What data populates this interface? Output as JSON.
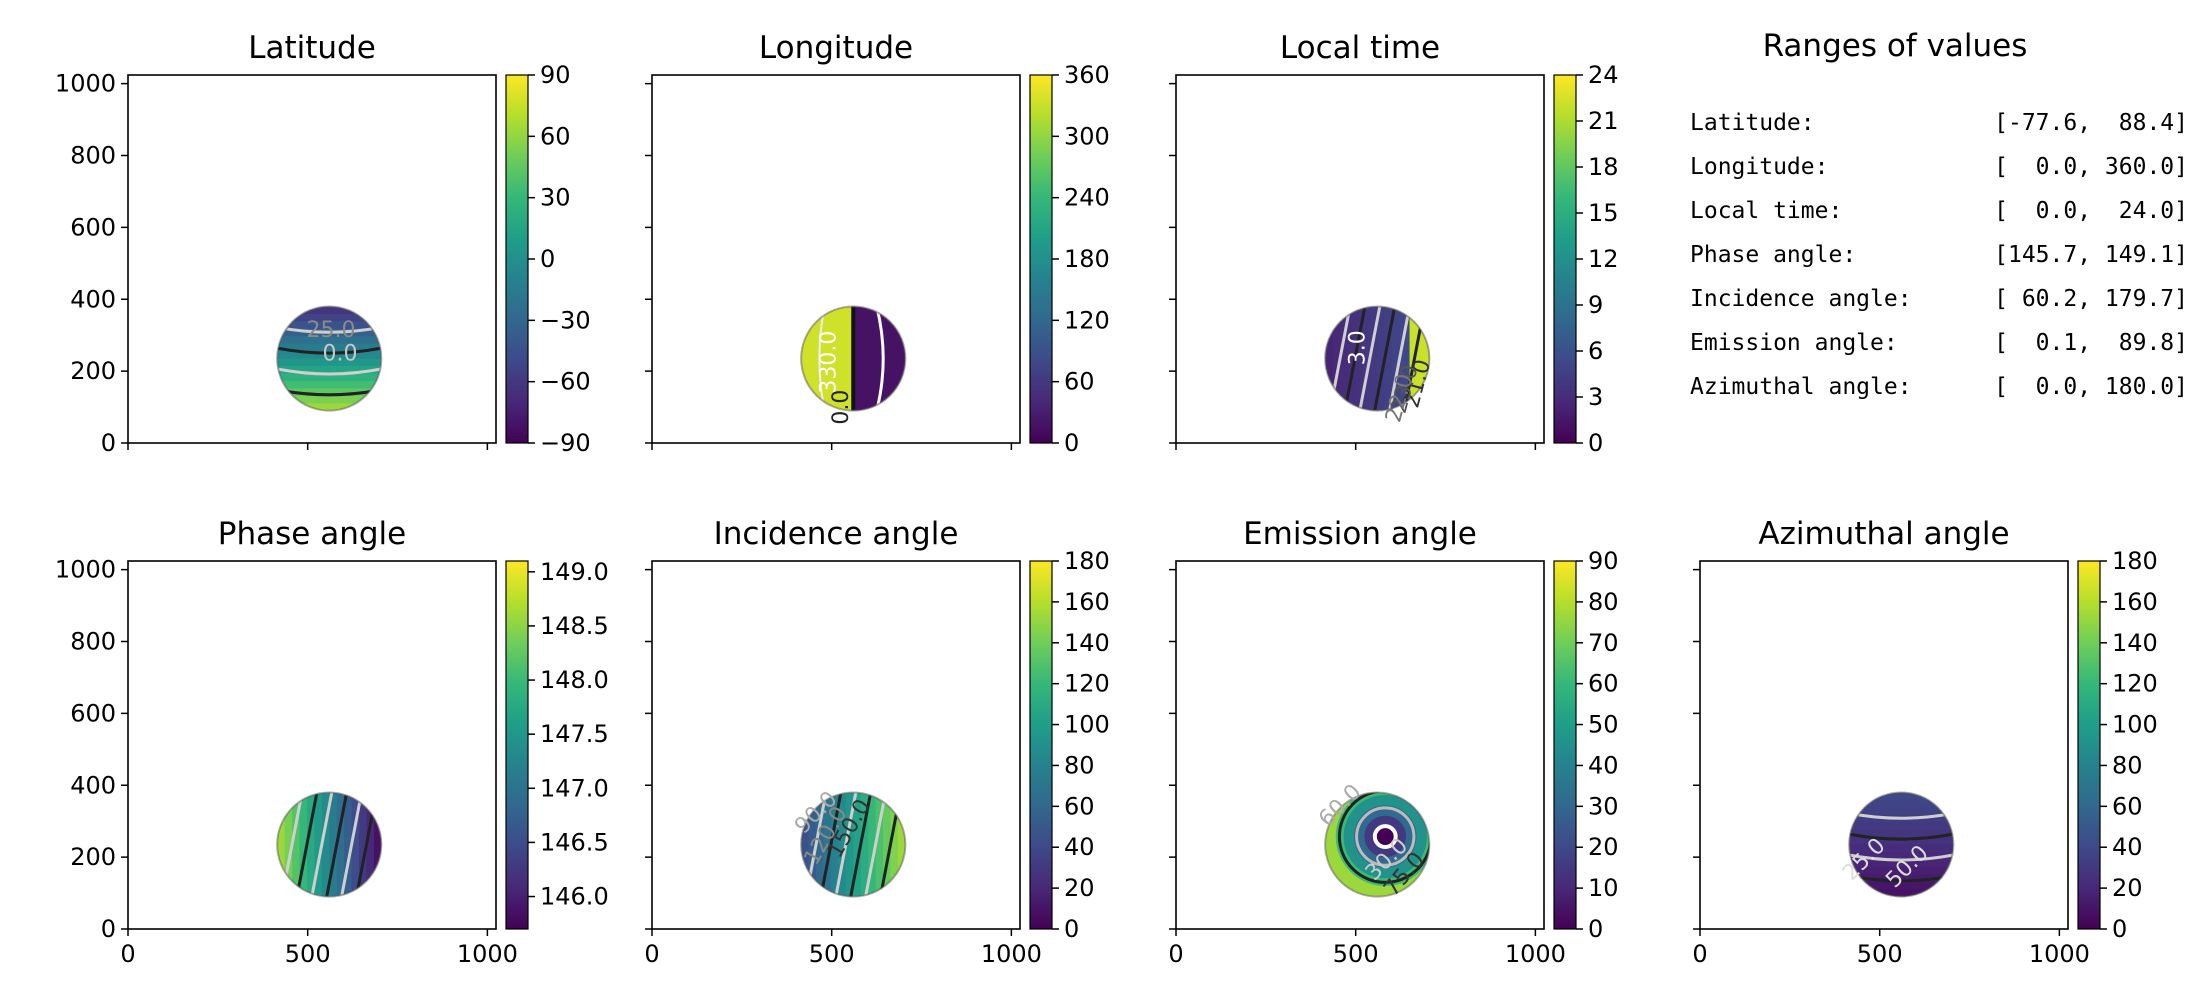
{
  "figure": {
    "background": "#ffffff",
    "colormap": "viridis",
    "stops": [
      "#440154",
      "#482878",
      "#3e4989",
      "#31688e",
      "#26828e",
      "#1f9e89",
      "#35b779",
      "#6ece58",
      "#b5de2b",
      "#fde725"
    ]
  },
  "chart_data": [
    {
      "id": "latitude",
      "type": "heatmap",
      "title": "Latitude",
      "xlim": [
        0,
        1024
      ],
      "ylim": [
        0,
        1024
      ],
      "yticks": [
        0,
        200,
        400,
        600,
        800,
        1000
      ],
      "xticks": [
        0,
        500,
        1000
      ],
      "show_yticklabels": true,
      "show_xticklabels": false,
      "colorbar": {
        "min": -90,
        "max": 90,
        "ticks": [
          -90,
          -60,
          -30,
          0,
          30,
          60,
          90
        ],
        "ticklabels": [
          "−90",
          "−60",
          "−30",
          "0",
          "30",
          "60",
          "90"
        ]
      },
      "disk": {
        "cx": 560,
        "cy": 235,
        "r": 145
      },
      "contour_labels": [
        {
          "text": "25.0",
          "x": 565,
          "y": 295,
          "rot": 0,
          "color": "#8a8a8a"
        },
        {
          "text": "0.0",
          "x": 590,
          "y": 230,
          "rot": 0,
          "color": "#c8c8c8"
        }
      ]
    },
    {
      "id": "longitude",
      "type": "heatmap",
      "title": "Longitude",
      "xlim": [
        0,
        1024
      ],
      "ylim": [
        0,
        1024
      ],
      "yticks": [
        0,
        200,
        400,
        600,
        800,
        1000
      ],
      "xticks": [
        0,
        500,
        1000
      ],
      "show_yticklabels": false,
      "show_xticklabels": false,
      "colorbar": {
        "min": 0,
        "max": 360,
        "ticks": [
          0,
          60,
          120,
          180,
          240,
          300,
          360
        ],
        "ticklabels": [
          "0",
          "60",
          "120",
          "180",
          "240",
          "300",
          "360"
        ]
      },
      "disk": {
        "cx": 560,
        "cy": 235,
        "r": 145
      },
      "contour_labels": [
        {
          "text": "330.0",
          "x": 510,
          "y": 225,
          "rot": -90,
          "color": "#ffffff"
        },
        {
          "text": "0.0",
          "x": 545,
          "y": 100,
          "rot": -90,
          "color": "#222222"
        }
      ]
    },
    {
      "id": "local_time",
      "type": "heatmap",
      "title": "Local time",
      "xlim": [
        0,
        1024
      ],
      "ylim": [
        0,
        1024
      ],
      "yticks": [
        0,
        200,
        400,
        600,
        800,
        1000
      ],
      "xticks": [
        0,
        500,
        1000
      ],
      "show_yticklabels": false,
      "show_xticklabels": false,
      "colorbar": {
        "min": 0,
        "max": 24,
        "ticks": [
          0,
          3,
          6,
          9,
          12,
          15,
          18,
          21,
          24
        ],
        "ticklabels": [
          "0",
          "3",
          "6",
          "9",
          "12",
          "15",
          "18",
          "21",
          "24"
        ]
      },
      "disk": {
        "cx": 560,
        "cy": 235,
        "r": 145
      },
      "contour_labels": [
        {
          "text": "3.0",
          "x": 525,
          "y": 265,
          "rot": -90,
          "color": "#ffffff"
        },
        {
          "text": "21.0",
          "x": 690,
          "y": 160,
          "rot": -75,
          "color": "#333333"
        },
        {
          "text": "23.0",
          "x": 655,
          "y": 145,
          "rot": -75,
          "color": "#555555"
        },
        {
          "text": "22.0",
          "x": 640,
          "y": 120,
          "rot": -75,
          "color": "#777777"
        }
      ]
    },
    {
      "id": "phase_angle",
      "type": "heatmap",
      "title": "Phase angle",
      "xlim": [
        0,
        1024
      ],
      "ylim": [
        0,
        1024
      ],
      "yticks": [
        0,
        200,
        400,
        600,
        800,
        1000
      ],
      "xticks": [
        0,
        500,
        1000
      ],
      "show_yticklabels": true,
      "show_xticklabels": true,
      "colorbar": {
        "min": 145.7,
        "max": 149.1,
        "ticks": [
          146.0,
          146.5,
          147.0,
          147.5,
          148.0,
          148.5,
          149.0
        ],
        "ticklabels": [
          "146.0",
          "146.5",
          "147.0",
          "147.5",
          "148.0",
          "148.5",
          "149.0"
        ]
      },
      "disk": {
        "cx": 560,
        "cy": 235,
        "r": 145
      },
      "contour_labels": []
    },
    {
      "id": "incidence_angle",
      "type": "heatmap",
      "title": "Incidence angle",
      "xlim": [
        0,
        1024
      ],
      "ylim": [
        0,
        1024
      ],
      "yticks": [
        0,
        200,
        400,
        600,
        800,
        1000
      ],
      "xticks": [
        0,
        500,
        1000
      ],
      "show_yticklabels": false,
      "show_xticklabels": true,
      "colorbar": {
        "min": 0,
        "max": 180,
        "ticks": [
          0,
          20,
          40,
          60,
          80,
          100,
          120,
          140,
          160,
          180
        ],
        "ticklabels": [
          "0",
          "20",
          "40",
          "60",
          "80",
          "100",
          "120",
          "140",
          "160",
          "180"
        ]
      },
      "disk": {
        "cx": 560,
        "cy": 235,
        "r": 145
      },
      "contour_labels": [
        {
          "text": "150.0",
          "x": 565,
          "y": 270,
          "rot": -60,
          "color": "#333333"
        },
        {
          "text": "120.0",
          "x": 500,
          "y": 250,
          "rot": -60,
          "color": "#888888"
        },
        {
          "text": "90.0",
          "x": 470,
          "y": 310,
          "rot": -45,
          "color": "#aaaaaa"
        }
      ]
    },
    {
      "id": "emission_angle",
      "type": "heatmap",
      "title": "Emission angle",
      "xlim": [
        0,
        1024
      ],
      "ylim": [
        0,
        1024
      ],
      "yticks": [
        0,
        200,
        400,
        600,
        800,
        1000
      ],
      "xticks": [
        0,
        500,
        1000
      ],
      "show_yticklabels": false,
      "show_xticklabels": true,
      "colorbar": {
        "min": 0,
        "max": 90,
        "ticks": [
          0,
          10,
          20,
          30,
          40,
          50,
          60,
          70,
          80,
          90
        ],
        "ticklabels": [
          "0",
          "10",
          "20",
          "30",
          "40",
          "50",
          "60",
          "70",
          "80",
          "90"
        ]
      },
      "disk": {
        "cx": 560,
        "cy": 235,
        "r": 145
      },
      "contour_labels": [
        {
          "text": "30.0",
          "x": 600,
          "y": 180,
          "rot": -45,
          "color": "#cccccc"
        },
        {
          "text": "60.0",
          "x": 470,
          "y": 330,
          "rot": -45,
          "color": "#aaaaaa"
        },
        {
          "text": "75.0",
          "x": 650,
          "y": 140,
          "rot": -50,
          "color": "#333333"
        }
      ]
    },
    {
      "id": "azimuthal_angle",
      "type": "heatmap",
      "title": "Azimuthal angle",
      "xlim": [
        0,
        1024
      ],
      "ylim": [
        0,
        1024
      ],
      "yticks": [
        0,
        200,
        400,
        600,
        800,
        1000
      ],
      "xticks": [
        0,
        500,
        1000
      ],
      "show_yticklabels": false,
      "show_xticklabels": true,
      "colorbar": {
        "min": 0,
        "max": 180,
        "ticks": [
          0,
          20,
          40,
          60,
          80,
          100,
          120,
          140,
          160,
          180
        ],
        "ticklabels": [
          "0",
          "20",
          "40",
          "60",
          "80",
          "100",
          "120",
          "140",
          "160",
          "180"
        ]
      },
      "disk": {
        "cx": 560,
        "cy": 235,
        "r": 145
      },
      "contour_labels": [
        {
          "text": "25.0",
          "x": 470,
          "y": 180,
          "rot": -45,
          "color": "#dddddd"
        },
        {
          "text": "50.0",
          "x": 590,
          "y": 160,
          "rot": -45,
          "color": "#dddddd"
        }
      ]
    }
  ],
  "ranges": {
    "title": "Ranges of values",
    "rows": [
      {
        "label": "Latitude:",
        "value": "[-77.6,  88.4]"
      },
      {
        "label": "Longitude:",
        "value": "[  0.0, 360.0]"
      },
      {
        "label": "Local time:",
        "value": "[  0.0,  24.0]"
      },
      {
        "label": "Phase angle:",
        "value": "[145.7, 149.1]"
      },
      {
        "label": "Incidence angle:",
        "value": "[ 60.2, 179.7]"
      },
      {
        "label": "Emission angle:",
        "value": "[  0.1,  89.8]"
      },
      {
        "label": "Azimuthal angle:",
        "value": "[  0.0, 180.0]"
      }
    ]
  }
}
